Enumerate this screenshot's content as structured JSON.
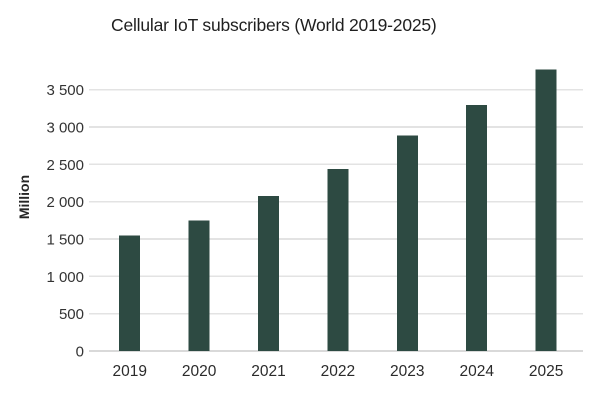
{
  "page": {
    "background": "#ffffff"
  },
  "chart_data": {
    "type": "bar",
    "title": "Cellular IoT subscribers (World 2019-2025)",
    "xlabel": "",
    "ylabel": "Million",
    "categories": [
      "2019",
      "2020",
      "2021",
      "2022",
      "2023",
      "2024",
      "2025"
    ],
    "series": [
      {
        "name": "Cellular IoT subscribers (Million)",
        "values": [
          1550,
          1745,
          2075,
          2440,
          2885,
          3295,
          3770
        ]
      }
    ],
    "yticks": [
      0,
      500,
      1000,
      1500,
      2000,
      2500,
      3000,
      3500
    ],
    "ytick_labels": [
      "0",
      "500",
      "1 000",
      "1 500",
      "2 000",
      "2 500",
      "3 000",
      "3 500"
    ],
    "ylim": [
      0,
      3900
    ],
    "grid": "horizontal",
    "legend_position": "none",
    "colors": {
      "bar": "#2d4a42",
      "gridline": "#e3e3e3",
      "baseline": "#d9d9d9",
      "tick_text": "#333333",
      "title_text": "#1f1f1f"
    }
  }
}
